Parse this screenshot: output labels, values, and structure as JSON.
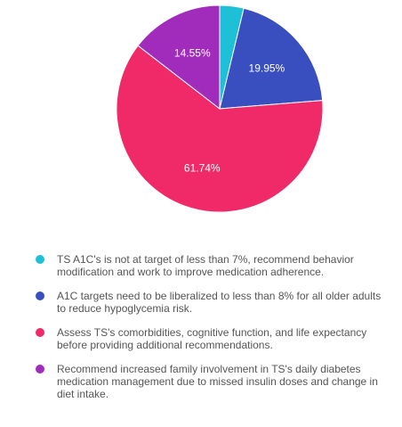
{
  "chart_data": {
    "type": "pie",
    "title": "",
    "slices": [
      {
        "label": "TS A1C's is not at target of less than 7%, recommend behavior modification and work to improve medication adherence.",
        "value": 3.76,
        "value_label": "",
        "color": "#1ec0d8"
      },
      {
        "label": "A1C targets need to be liberalized to less than 8% for all older adults to reduce hypoglycemia risk.",
        "value": 19.95,
        "value_label": "19.95%",
        "color": "#3a4fbf"
      },
      {
        "label": "Assess TS's comorbidities, cognitive function, and life expectancy before providing additional recommendations.",
        "value": 61.74,
        "value_label": "61.74%",
        "color": "#f02a68"
      },
      {
        "label": "Recommend increased family involvement in TS's daily diabetes medication management due to missed insulin doses and change in diet intake.",
        "value": 14.55,
        "value_label": "14.55%",
        "color": "#a12cbc"
      }
    ],
    "legend_position": "bottom"
  }
}
